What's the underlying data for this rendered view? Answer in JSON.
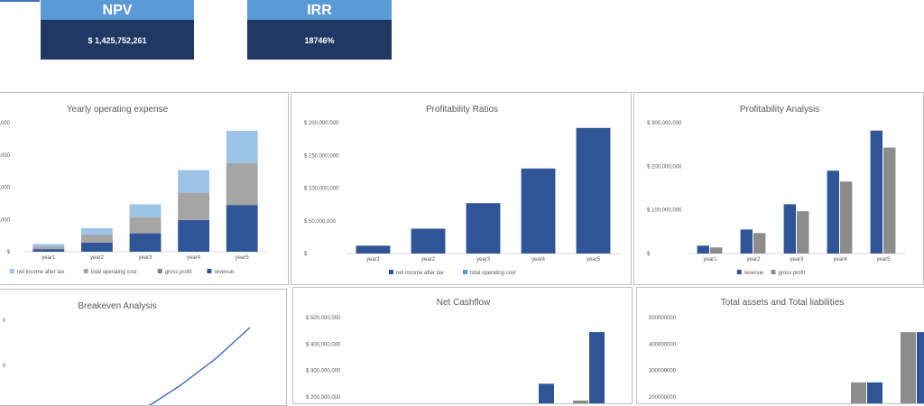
{
  "kpis": {
    "npv": {
      "label": "NPV",
      "value": "$ 1,425,752,261"
    },
    "irr": {
      "label": "IRR",
      "value": "18746%"
    }
  },
  "colors": {
    "kpi_header": "#5b9bd5",
    "kpi_value": "#1f3864",
    "revenue": "#2f5597",
    "gross_profit": "#7f7f7f",
    "operating_cost": "#a5a5a5",
    "net_income_light": "#9dc3e6",
    "light_blue": "#5b9bd5",
    "gray": "#8c8c8c"
  },
  "chart_data": [
    {
      "id": "opex",
      "type": "bar",
      "stacked": true,
      "title": "Yearly operating expense",
      "categories": [
        "year1",
        "year2",
        "year3",
        "year4",
        "year5"
      ],
      "y_ticks": [
        "$",
        "0,000",
        "0,000",
        "0,000",
        "0,000"
      ],
      "ylim": [
        0,
        400000000
      ],
      "series": [
        {
          "name": "net income after tax",
          "color": "#9dc3e6",
          "values": [
            8000000,
            20000000,
            40000000,
            70000000,
            100000000
          ]
        },
        {
          "name": "total operating cost",
          "color": "#a5a5a5",
          "values": [
            8000000,
            25000000,
            50000000,
            85000000,
            130000000
          ]
        },
        {
          "name": "gross profit",
          "color": "#7f7f7f",
          "values": [
            0,
            0,
            0,
            0,
            0
          ]
        },
        {
          "name": "revenue",
          "color": "#2f5597",
          "values": [
            8000000,
            28000000,
            57000000,
            98000000,
            145000000
          ]
        }
      ],
      "legend": "bottom"
    },
    {
      "id": "ratios",
      "type": "bar",
      "title": "Profitability Ratios",
      "categories": [
        "year1",
        "year2",
        "year3",
        "year4",
        "year5"
      ],
      "y_ticks": [
        "$",
        "$ 50,000,000",
        "$ 100,000,000",
        "$ 150,000,000",
        "$ 200,000,000"
      ],
      "ylim": [
        0,
        200000000
      ],
      "series": [
        {
          "name": "net income after tax",
          "color": "#2f5597",
          "values": [
            12000000,
            38000000,
            77000000,
            130000000,
            192000000
          ]
        },
        {
          "name": "total operating cost",
          "color": "#5b9bd5",
          "values": [
            0,
            0,
            0,
            0,
            0
          ]
        }
      ],
      "legend": "bottom"
    },
    {
      "id": "analysis",
      "type": "bar",
      "title": "Profitability Analysis",
      "categories": [
        "year1",
        "year2",
        "year3",
        "year4",
        "year5"
      ],
      "y_ticks": [
        "$",
        "$ 100,000,000",
        "$ 200,000,000",
        "$ 300,000,000"
      ],
      "ylim": [
        0,
        300000000
      ],
      "series": [
        {
          "name": "revenue",
          "color": "#2f5597",
          "values": [
            18000000,
            55000000,
            113000000,
            190000000,
            282000000
          ]
        },
        {
          "name": "gross profit",
          "color": "#8c8c8c",
          "values": [
            14000000,
            47000000,
            97000000,
            165000000,
            243000000
          ]
        }
      ],
      "legend": "bottom"
    },
    {
      "id": "breakeven",
      "type": "line",
      "title": "Breakeven Analysis",
      "y_ticks": [
        "0",
        "0"
      ],
      "series": [
        {
          "name": "",
          "color": "#4472c4",
          "values": [
            0,
            20,
            50,
            85,
            125
          ]
        }
      ]
    },
    {
      "id": "cashflow",
      "type": "bar",
      "title": "Net Cashflow",
      "y_ticks": [
        "$ 200,000,000",
        "$ 300,000,000",
        "$ 400,000,000",
        "$ 500,000,000"
      ],
      "ylim": [
        0,
        500000000
      ],
      "series": [
        {
          "name": "",
          "color": "#2f5597",
          "values": [
            0,
            0,
            0,
            250000000,
            445000000
          ]
        },
        {
          "name": "",
          "color": "#8c8c8c",
          "values": [
            0,
            0,
            0,
            0,
            150000000
          ]
        }
      ]
    },
    {
      "id": "assets",
      "type": "bar",
      "title": "Total assets and Total liabilities",
      "y_ticks": [
        "200000000",
        "300000000",
        "400000000",
        "500000000"
      ],
      "ylim": [
        0,
        500000000
      ],
      "series": [
        {
          "name": "",
          "color": "#8c8c8c",
          "values": [
            0,
            0,
            0,
            0,
            0,
            255000000,
            445000000
          ]
        },
        {
          "name": "",
          "color": "#2f5597",
          "values": [
            0,
            0,
            0,
            0,
            0,
            255000000,
            445000000
          ]
        }
      ]
    }
  ]
}
